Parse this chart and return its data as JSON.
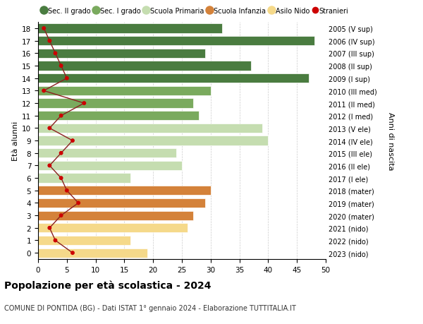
{
  "ages": [
    18,
    17,
    16,
    15,
    14,
    13,
    12,
    11,
    10,
    9,
    8,
    7,
    6,
    5,
    4,
    3,
    2,
    1,
    0
  ],
  "right_labels": [
    "2005 (V sup)",
    "2006 (IV sup)",
    "2007 (III sup)",
    "2008 (II sup)",
    "2009 (I sup)",
    "2010 (III med)",
    "2011 (II med)",
    "2012 (I med)",
    "2013 (V ele)",
    "2014 (IV ele)",
    "2015 (III ele)",
    "2016 (II ele)",
    "2017 (I ele)",
    "2018 (mater)",
    "2019 (mater)",
    "2020 (mater)",
    "2021 (nido)",
    "2022 (nido)",
    "2023 (nido)"
  ],
  "bar_values": [
    32,
    48,
    29,
    37,
    47,
    30,
    27,
    28,
    39,
    40,
    24,
    25,
    16,
    30,
    29,
    27,
    26,
    16,
    19
  ],
  "bar_colors": [
    "#4a7c40",
    "#4a7c40",
    "#4a7c40",
    "#4a7c40",
    "#4a7c40",
    "#7aaa5e",
    "#7aaa5e",
    "#7aaa5e",
    "#c5ddb0",
    "#c5ddb0",
    "#c5ddb0",
    "#c5ddb0",
    "#c5ddb0",
    "#d4823a",
    "#d4823a",
    "#d4823a",
    "#f5d98a",
    "#f5d98a",
    "#f5d98a"
  ],
  "stranieri_values": [
    1,
    2,
    3,
    4,
    5,
    1,
    8,
    4,
    2,
    6,
    4,
    2,
    4,
    5,
    7,
    4,
    2,
    3,
    6
  ],
  "legend_labels": [
    "Sec. II grado",
    "Sec. I grado",
    "Scuola Primaria",
    "Scuola Infanzia",
    "Asilo Nido",
    "Stranieri"
  ],
  "legend_colors": [
    "#4a7c40",
    "#7aaa5e",
    "#c5ddb0",
    "#d4823a",
    "#f5d98a",
    "#cc0000"
  ],
  "ylabel": "Età alunni",
  "right_ylabel": "Anni di nascita",
  "title": "Popolazione per età scolastica - 2024",
  "subtitle": "COMUNE DI PONTIDA (BG) - Dati ISTAT 1° gennaio 2024 - Elaborazione TUTTITALIA.IT",
  "xlim": [
    0,
    50
  ],
  "background_color": "#ffffff",
  "bar_height": 0.75,
  "grid_color": "#cccccc",
  "stranieri_line_color": "#8b2020",
  "stranieri_dot_color": "#cc0000"
}
